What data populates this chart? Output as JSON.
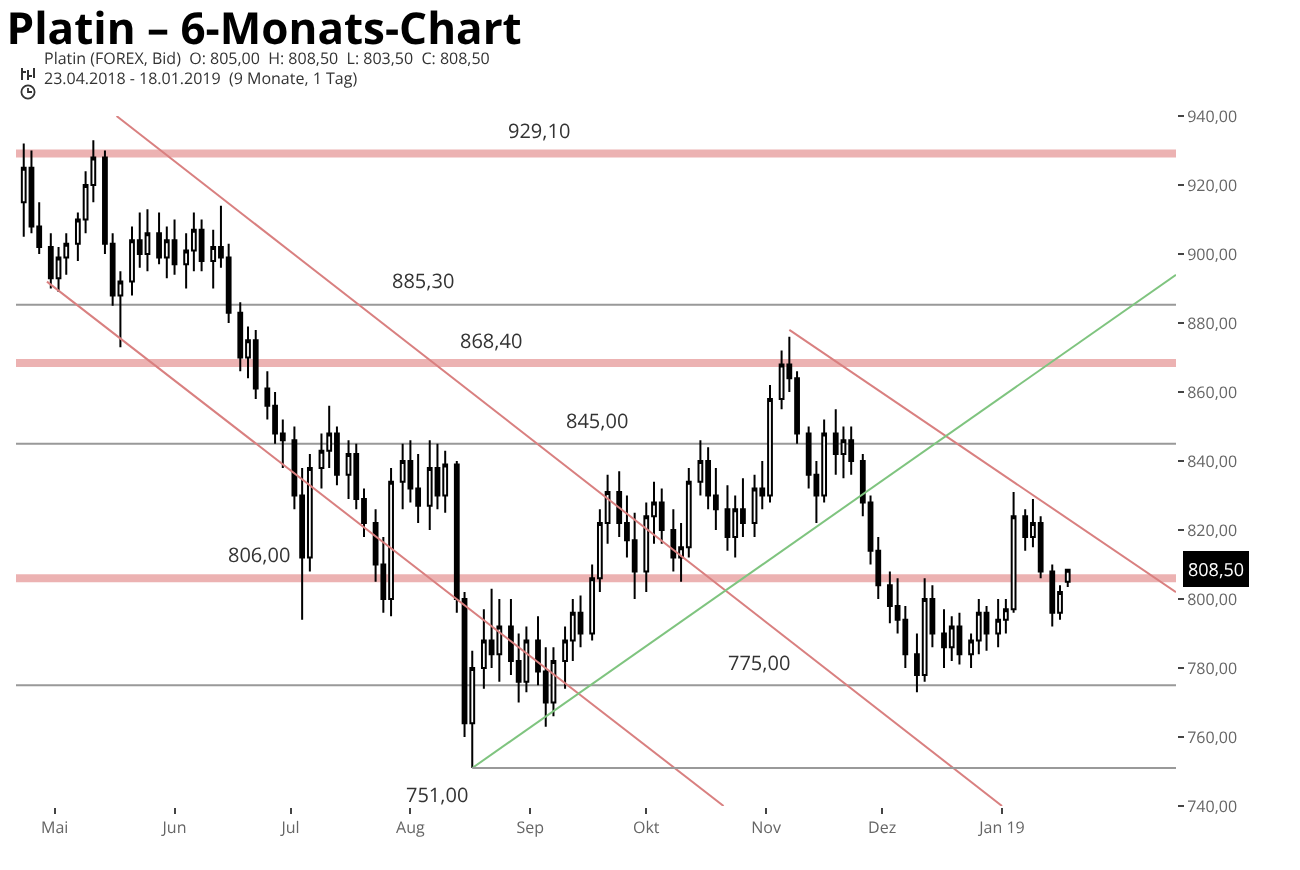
{
  "chart_data": {
    "type": "candlestick",
    "title": "Platin – 6-Monats-Chart",
    "subtitle": "Platin (FOREX, Bid)  O: 805,00  H: 808,50  L: 803,50  C: 808,50",
    "color": "#000000",
    "x": [
      "2018-04-23",
      "2018-04-25",
      "2018-04-27",
      "2018-04-30",
      "2018-05-02",
      "2018-05-04",
      "2018-05-07",
      "2018-05-09",
      "2018-05-11",
      "2018-05-14",
      "2018-05-16",
      "2018-05-18",
      "2018-05-21",
      "2018-05-23",
      "2018-05-25",
      "2018-05-28",
      "2018-05-30",
      "2018-06-01",
      "2018-06-04",
      "2018-06-06",
      "2018-06-08",
      "2018-06-11",
      "2018-06-13",
      "2018-06-15",
      "2018-06-18",
      "2018-06-20",
      "2018-06-22",
      "2018-06-25",
      "2018-06-27",
      "2018-06-29",
      "2018-07-02",
      "2018-07-04",
      "2018-07-06",
      "2018-07-09",
      "2018-07-11",
      "2018-07-13",
      "2018-07-16",
      "2018-07-18",
      "2018-07-20",
      "2018-07-23",
      "2018-07-25",
      "2018-07-27",
      "2018-07-30",
      "2018-08-01",
      "2018-08-03",
      "2018-08-06",
      "2018-08-08",
      "2018-08-10",
      "2018-08-13",
      "2018-08-15",
      "2018-08-17",
      "2018-08-20",
      "2018-08-22",
      "2018-08-24",
      "2018-08-27",
      "2018-08-29",
      "2018-08-31",
      "2018-09-03",
      "2018-09-05",
      "2018-09-07",
      "2018-09-10",
      "2018-09-12",
      "2018-09-14",
      "2018-09-17",
      "2018-09-19",
      "2018-09-21",
      "2018-09-24",
      "2018-09-26",
      "2018-09-28",
      "2018-10-01",
      "2018-10-03",
      "2018-10-05",
      "2018-10-08",
      "2018-10-10",
      "2018-10-12",
      "2018-10-15",
      "2018-10-17",
      "2018-10-19",
      "2018-10-22",
      "2018-10-24",
      "2018-10-26",
      "2018-10-29",
      "2018-10-31",
      "2018-11-02",
      "2018-11-05",
      "2018-11-07",
      "2018-11-09",
      "2018-11-12",
      "2018-11-14",
      "2018-11-16",
      "2018-11-19",
      "2018-11-21",
      "2018-11-23",
      "2018-11-26",
      "2018-11-28",
      "2018-11-30",
      "2018-12-03",
      "2018-12-05",
      "2018-12-07",
      "2018-12-10",
      "2018-12-12",
      "2018-12-14",
      "2018-12-17",
      "2018-12-19",
      "2018-12-21",
      "2018-12-24",
      "2018-12-26",
      "2018-12-28",
      "2018-12-31",
      "2019-01-02",
      "2019-01-04",
      "2019-01-07",
      "2019-01-09",
      "2019-01-11",
      "2019-01-14",
      "2019-01-16",
      "2019-01-18"
    ],
    "ohlc": [
      [
        915,
        932,
        905,
        925
      ],
      [
        925,
        930,
        906,
        908
      ],
      [
        908,
        915,
        900,
        902
      ],
      [
        902,
        906,
        890,
        893
      ],
      [
        893,
        902,
        889,
        899
      ],
      [
        899,
        906,
        894,
        903
      ],
      [
        903,
        912,
        898,
        910
      ],
      [
        910,
        924,
        906,
        920
      ],
      [
        920,
        933,
        915,
        928
      ],
      [
        928,
        930,
        900,
        903
      ],
      [
        903,
        906,
        885,
        888
      ],
      [
        888,
        895,
        873,
        892
      ],
      [
        892,
        908,
        888,
        904
      ],
      [
        904,
        912,
        896,
        900
      ],
      [
        900,
        913,
        895,
        906
      ],
      [
        906,
        912,
        897,
        899
      ],
      [
        899,
        908,
        893,
        904
      ],
      [
        904,
        910,
        894,
        897
      ],
      [
        897,
        906,
        890,
        901
      ],
      [
        901,
        912,
        895,
        907
      ],
      [
        907,
        910,
        895,
        898
      ],
      [
        898,
        907,
        890,
        902
      ],
      [
        902,
        914,
        896,
        899
      ],
      [
        899,
        903,
        880,
        883
      ],
      [
        883,
        886,
        866,
        870
      ],
      [
        870,
        879,
        864,
        875
      ],
      [
        875,
        878,
        858,
        861
      ],
      [
        861,
        866,
        852,
        856
      ],
      [
        856,
        860,
        845,
        848
      ],
      [
        848,
        852,
        838,
        846
      ],
      [
        846,
        850,
        826,
        830
      ],
      [
        830,
        838,
        794,
        812
      ],
      [
        812,
        842,
        808,
        838
      ],
      [
        838,
        848,
        832,
        843
      ],
      [
        843,
        856,
        838,
        848
      ],
      [
        848,
        850,
        833,
        836
      ],
      [
        836,
        846,
        829,
        842
      ],
      [
        842,
        845,
        826,
        829
      ],
      [
        829,
        832,
        818,
        822
      ],
      [
        822,
        826,
        805,
        810
      ],
      [
        810,
        818,
        796,
        800
      ],
      [
        800,
        838,
        795,
        834
      ],
      [
        834,
        845,
        826,
        840
      ],
      [
        840,
        846,
        828,
        832
      ],
      [
        832,
        842,
        822,
        827
      ],
      [
        827,
        846,
        820,
        838
      ],
      [
        838,
        845,
        826,
        830
      ],
      [
        830,
        843,
        825,
        839
      ],
      [
        839,
        840,
        796,
        800
      ],
      [
        800,
        802,
        760,
        764
      ],
      [
        764,
        785,
        751,
        780
      ],
      [
        780,
        797,
        774,
        788
      ],
      [
        788,
        803,
        780,
        784
      ],
      [
        784,
        800,
        776,
        792
      ],
      [
        792,
        800,
        778,
        782
      ],
      [
        782,
        790,
        770,
        776
      ],
      [
        776,
        792,
        773,
        788
      ],
      [
        788,
        795,
        775,
        779
      ],
      [
        779,
        786,
        763,
        770
      ],
      [
        770,
        786,
        766,
        782
      ],
      [
        782,
        792,
        774,
        788
      ],
      [
        788,
        800,
        782,
        796
      ],
      [
        796,
        801,
        786,
        790
      ],
      [
        790,
        810,
        788,
        806
      ],
      [
        806,
        826,
        802,
        822
      ],
      [
        822,
        836,
        816,
        831
      ],
      [
        831,
        837,
        818,
        822
      ],
      [
        822,
        830,
        812,
        817
      ],
      [
        817,
        825,
        800,
        808
      ],
      [
        808,
        828,
        802,
        824
      ],
      [
        824,
        834,
        816,
        828
      ],
      [
        828,
        832,
        816,
        820
      ],
      [
        820,
        826,
        808,
        812
      ],
      [
        812,
        822,
        805,
        815
      ],
      [
        815,
        838,
        812,
        834
      ],
      [
        834,
        846,
        830,
        840
      ],
      [
        840,
        844,
        826,
        830
      ],
      [
        830,
        838,
        820,
        826
      ],
      [
        826,
        833,
        814,
        818
      ],
      [
        818,
        830,
        812,
        826
      ],
      [
        826,
        835,
        818,
        822
      ],
      [
        822,
        836,
        818,
        832
      ],
      [
        832,
        840,
        826,
        830
      ],
      [
        830,
        862,
        828,
        858
      ],
      [
        858,
        872,
        855,
        868
      ],
      [
        868,
        876,
        860,
        864
      ],
      [
        864,
        866,
        845,
        848
      ],
      [
        848,
        850,
        832,
        836
      ],
      [
        836,
        840,
        822,
        830
      ],
      [
        830,
        852,
        828,
        848
      ],
      [
        848,
        855,
        836,
        842
      ],
      [
        842,
        850,
        835,
        846
      ],
      [
        846,
        850,
        836,
        840
      ],
      [
        840,
        842,
        824,
        828
      ],
      [
        828,
        830,
        810,
        814
      ],
      [
        814,
        818,
        800,
        804
      ],
      [
        804,
        808,
        793,
        798
      ],
      [
        798,
        806,
        790,
        794
      ],
      [
        794,
        798,
        780,
        784
      ],
      [
        784,
        790,
        773,
        778
      ],
      [
        778,
        806,
        776,
        800
      ],
      [
        800,
        804,
        786,
        790
      ],
      [
        790,
        797,
        780,
        786
      ],
      [
        786,
        795,
        782,
        792
      ],
      [
        792,
        796,
        781,
        784
      ],
      [
        784,
        790,
        780,
        788
      ],
      [
        788,
        800,
        784,
        796
      ],
      [
        796,
        798,
        785,
        790
      ],
      [
        790,
        800,
        786,
        794
      ],
      [
        794,
        800,
        790,
        797
      ],
      [
        797,
        831,
        796,
        824
      ],
      [
        824,
        826,
        814,
        818
      ],
      [
        818,
        829,
        815,
        822
      ],
      [
        822,
        824,
        806,
        808
      ],
      [
        808,
        810,
        792,
        796
      ],
      [
        796,
        804,
        794,
        802
      ],
      [
        805,
        808.5,
        803.5,
        808.5
      ]
    ],
    "series": [
      {
        "type": "line",
        "color": "#d98080",
        "x": [
          "2018-05-17",
          "2019-01-01"
        ],
        "values": [
          940,
          740
        ]
      },
      {
        "type": "line",
        "color": "#d98080",
        "x": [
          "2018-04-29",
          "2018-10-21"
        ],
        "values": [
          892,
          740
        ]
      },
      {
        "type": "line",
        "color": "#d98080",
        "x": [
          "2018-11-07",
          "2019-02-15"
        ],
        "values": [
          878,
          802
        ]
      },
      {
        "type": "line",
        "color": "#7fc47f",
        "x": [
          "2018-08-17",
          "2019-02-15"
        ],
        "values": [
          751,
          894
        ]
      },
      {
        "type": "line",
        "color": "#999999",
        "x": [
          "2018-08-17",
          "2019-02-15"
        ],
        "values": [
          751,
          751
        ]
      }
    ],
    "ref_lines": [
      {
        "axis": "y",
        "value": 929.1,
        "label": "929,10",
        "color": "#e08080"
      },
      {
        "axis": "y",
        "value": 885.3,
        "label": "885,30",
        "color": "#999999"
      },
      {
        "axis": "y",
        "value": 868.4,
        "label": "868,40",
        "color": "#e08080"
      },
      {
        "axis": "y",
        "value": 845,
        "label": "845,00",
        "color": "#999999"
      },
      {
        "axis": "y",
        "value": 806,
        "label": "806,00",
        "color": "#e08080"
      },
      {
        "axis": "y",
        "value": 775,
        "label": "775,00",
        "color": "#999999"
      }
    ],
    "annotations": [
      "23.04.2018 - 18.01.2019  (9 Monate, 1 Tag)",
      {
        "text": "751,00",
        "x": "2018-08-17",
        "y": 751
      },
      "808,50"
    ],
    "xlim": [
      "2018-04-21",
      "2019-02-15"
    ],
    "xticks": [
      {
        "value": "2018-05-01",
        "label": "Mai"
      },
      {
        "value": "2018-06-01",
        "label": "Jun"
      },
      {
        "value": "2018-07-01",
        "label": "Jul"
      },
      {
        "value": "2018-08-01",
        "label": "Aug"
      },
      {
        "value": "2018-09-01",
        "label": "Sep"
      },
      {
        "value": "2018-10-01",
        "label": "Okt"
      },
      {
        "value": "2018-11-01",
        "label": "Nov"
      },
      {
        "value": "2018-12-01",
        "label": "Dez"
      },
      {
        "value": "2019-01-01",
        "label": "Jan 19"
      }
    ],
    "ylim": [
      740,
      940
    ],
    "yticks": [
      {
        "value": 740,
        "label": "740,00"
      },
      {
        "value": 760,
        "label": "760,00"
      },
      {
        "value": 780,
        "label": "780,00"
      },
      {
        "value": 800,
        "label": "800,00"
      },
      {
        "value": 820,
        "label": "820,00"
      },
      {
        "value": 840,
        "label": "840,00"
      },
      {
        "value": 860,
        "label": "860,00"
      },
      {
        "value": 880,
        "label": "880,00"
      },
      {
        "value": 900,
        "label": "900,00"
      },
      {
        "value": 920,
        "label": "920,00"
      },
      {
        "value": 940,
        "label": "940,00"
      }
    ]
  }
}
